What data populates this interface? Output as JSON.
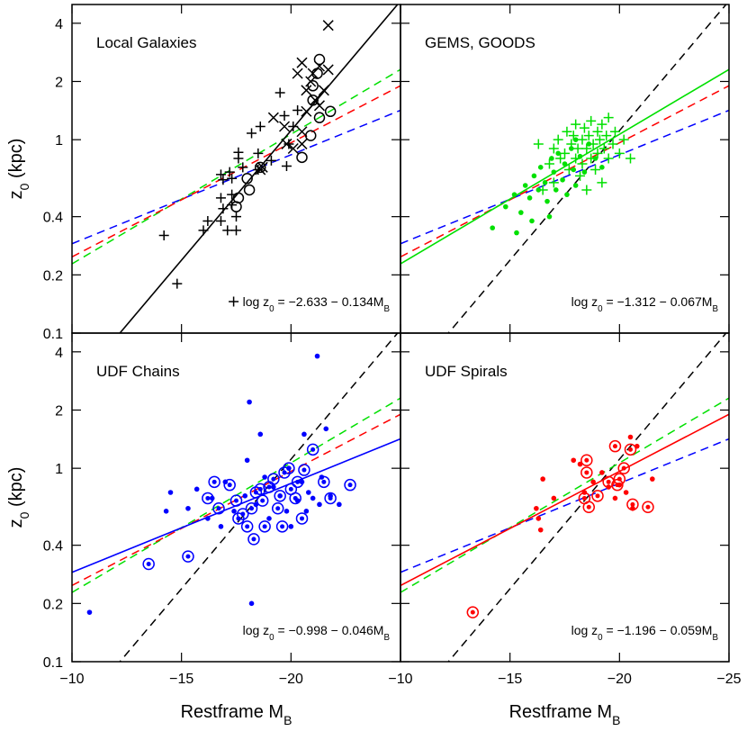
{
  "chart_data": [
    {
      "type": "scatter",
      "title": "Local Galaxies",
      "color": "#000000",
      "xlim": [
        -10,
        -25
      ],
      "ylim": [
        0.1,
        5
      ],
      "ylog": true,
      "xticks": [
        -10,
        -15,
        -20,
        -25
      ],
      "yticks": [
        0.1,
        0.2,
        0.4,
        1,
        2,
        4
      ],
      "show_xtick_labels": false,
      "show_ytick_labels": true,
      "ylabel": [
        "z",
        "0",
        " (kpc)"
      ],
      "fit": {
        "intercept": -2.633,
        "slope": -0.134,
        "label": [
          "log z",
          "0",
          " = −2.633 − 0.134M",
          "B"
        ],
        "marker": "plus"
      },
      "series": [
        {
          "marker": "plus",
          "color": "#000000",
          "x": [
            -14.2,
            -14.8,
            -16.0,
            -16.2,
            -16.8,
            -16.9,
            -16.8,
            -17.3,
            -16.9,
            -16.8,
            -17.2,
            -17.5,
            -17.5,
            -17.3,
            -17.6,
            -17.8,
            -17.6,
            -18.2,
            -18.6,
            -18.5,
            -19.1,
            -19.5,
            -19.7,
            -19.9,
            -19.8,
            -20.1,
            -20.3,
            -17.1,
            -17.3,
            -18.5
          ],
          "y": [
            0.32,
            0.18,
            0.34,
            0.38,
            0.38,
            0.44,
            0.5,
            0.52,
            0.62,
            0.66,
            0.68,
            0.4,
            0.34,
            0.46,
            0.8,
            0.72,
            0.86,
            1.08,
            1.17,
            0.85,
            0.78,
            1.75,
            1.33,
            0.95,
            0.73,
            1.17,
            1.42,
            0.34,
            0.63,
            0.7
          ]
        },
        {
          "marker": "cross",
          "color": "#000000",
          "x": [
            -21.7,
            -20.3,
            -20.5,
            -21.0,
            -21.3,
            -20.7,
            -21.1,
            -21.5,
            -20.7,
            -21.3,
            -19.7,
            -19.8,
            -20.1,
            -20.5,
            -20.5,
            -18.6,
            -18.7,
            -19.2,
            -20.9,
            -21.7
          ],
          "y": [
            3.9,
            2.2,
            2.5,
            2.2,
            2.4,
            1.8,
            1.6,
            1.8,
            1.4,
            1.5,
            1.17,
            0.95,
            0.9,
            0.95,
            1.1,
            0.7,
            0.72,
            1.3,
            2.0,
            2.3
          ]
        },
        {
          "marker": "circle",
          "color": "#000000",
          "x": [
            -21.3,
            -21.0,
            -21.2,
            -21.0,
            -21.3,
            -21.8,
            -20.9,
            -20.5,
            -18.0,
            -18.1,
            -17.6,
            -17.5,
            -18.6
          ],
          "y": [
            2.6,
            1.9,
            2.2,
            1.6,
            1.3,
            1.4,
            1.05,
            0.81,
            0.63,
            0.55,
            0.5,
            0.45,
            0.72
          ]
        }
      ]
    },
    {
      "type": "scatter",
      "title": "GEMS, GOODS",
      "color": "#00e000",
      "xlim": [
        -10,
        -25
      ],
      "ylim": [
        0.1,
        5
      ],
      "ylog": true,
      "xticks": [
        -10,
        -15,
        -20,
        -25
      ],
      "yticks": [
        0.1,
        0.2,
        0.4,
        1,
        2,
        4
      ],
      "show_xtick_labels": false,
      "show_ytick_labels": false,
      "fit": {
        "intercept": -1.312,
        "slope": -0.067,
        "label": [
          "log z",
          "0",
          " = −1.312 − 0.067M",
          "B"
        ]
      },
      "series": [
        {
          "marker": "plus",
          "color": "#00e000",
          "x": [
            -16.3,
            -16.8,
            -17.0,
            -17.2,
            -17.3,
            -17.5,
            -17.6,
            -17.7,
            -17.8,
            -17.9,
            -18.0,
            -18.0,
            -18.1,
            -18.2,
            -18.3,
            -18.3,
            -18.4,
            -18.5,
            -18.5,
            -18.6,
            -18.7,
            -18.7,
            -18.8,
            -18.9,
            -19.0,
            -19.0,
            -19.1,
            -19.2,
            -19.2,
            -19.3,
            -19.4,
            -19.5,
            -19.5,
            -19.7,
            -19.8,
            -20.0,
            -20.2,
            -20.5,
            -17.0,
            -16.5
          ],
          "y": [
            0.95,
            0.75,
            0.9,
            1.0,
            0.8,
            0.85,
            1.1,
            0.7,
            0.95,
            1.05,
            0.8,
            1.2,
            0.9,
            0.65,
            1.0,
            0.75,
            1.15,
            0.9,
            0.55,
            1.05,
            0.8,
            1.25,
            0.95,
            0.7,
            1.1,
            0.85,
            1.0,
            0.6,
            1.2,
            0.9,
            1.05,
            0.8,
            1.3,
            0.95,
            1.1,
            0.85,
            1.0,
            0.8,
            0.6,
            0.55
          ]
        },
        {
          "marker": "dot",
          "color": "#00e000",
          "x": [
            -14.2,
            -14.8,
            -15.2,
            -15.5,
            -15.7,
            -15.9,
            -16.0,
            -16.1,
            -16.3,
            -16.4,
            -16.6,
            -16.7,
            -16.9,
            -17.0,
            -17.1,
            -17.2,
            -17.4,
            -17.5,
            -17.6,
            -17.8,
            -17.9,
            -18.0,
            -18.2,
            -18.4,
            -18.6,
            -18.9,
            -19.2,
            -16.8,
            -15.3,
            -18.0
          ],
          "y": [
            0.35,
            0.45,
            0.52,
            0.42,
            0.58,
            0.5,
            0.38,
            0.65,
            0.55,
            0.72,
            0.6,
            0.48,
            0.8,
            0.68,
            0.55,
            0.85,
            0.62,
            0.75,
            0.52,
            0.9,
            0.7,
            0.58,
            0.82,
            0.68,
            0.95,
            0.8,
            0.72,
            0.4,
            0.33,
            1.0
          ]
        }
      ]
    },
    {
      "type": "scatter",
      "title": "UDF Chains",
      "color": "#0000ff",
      "xlim": [
        -10,
        -25
      ],
      "ylim": [
        0.1,
        5
      ],
      "ylog": true,
      "xticks": [
        {
          "value": -10,
          "label": "−10"
        },
        {
          "value": -15,
          "label": "−15"
        },
        {
          "value": -20,
          "label": "−20"
        }
      ],
      "yticks": [
        0.1,
        0.2,
        0.4,
        1,
        2,
        4
      ],
      "show_xtick_labels": true,
      "show_ytick_labels": true,
      "ylabel": [
        "z",
        "0",
        " (kpc)"
      ],
      "xlabel": [
        "Restframe M",
        "B"
      ],
      "fit": {
        "intercept": -0.998,
        "slope": -0.046,
        "label": [
          "log z",
          "0",
          " = −0.998 − 0.046M",
          "B"
        ]
      },
      "series": [
        {
          "marker": "dot",
          "color": "#0000ff",
          "x": [
            -10.8,
            -14.3,
            -14.5,
            -15.3,
            -15.7,
            -16.4,
            -16.8,
            -17.0,
            -17.4,
            -17.9,
            -18.1,
            -18.2,
            -18.4,
            -18.6,
            -18.8,
            -19.0,
            -19.2,
            -19.5,
            -19.8,
            -19.9,
            -20.0,
            -20.3,
            -20.5,
            -20.6,
            -20.7,
            -20.8,
            -21.0,
            -21.2,
            -21.3,
            -21.4,
            -21.6,
            -21.8,
            -22.2,
            -16.2,
            -18.0
          ],
          "y": [
            0.18,
            0.6,
            0.75,
            0.62,
            0.78,
            0.7,
            0.5,
            0.85,
            0.6,
            0.72,
            2.2,
            0.2,
            0.65,
            1.5,
            0.9,
            0.55,
            0.8,
            0.72,
            0.6,
            1.0,
            0.5,
            0.68,
            0.85,
            1.5,
            0.6,
            0.75,
            0.7,
            3.8,
            0.65,
            0.9,
            1.6,
            0.72,
            0.65,
            0.55,
            1.1
          ]
        },
        {
          "marker": "circled-dot",
          "color": "#0000ff",
          "x": [
            -13.5,
            -15.3,
            -16.2,
            -16.5,
            -16.7,
            -17.2,
            -17.5,
            -17.6,
            -17.8,
            -18.0,
            -18.2,
            -18.3,
            -18.4,
            -18.6,
            -18.7,
            -18.8,
            -19.0,
            -19.2,
            -19.4,
            -19.5,
            -19.6,
            -19.7,
            -19.9,
            -20.0,
            -20.2,
            -20.3,
            -20.5,
            -20.6,
            -21.0,
            -21.5,
            -21.8,
            -22.7
          ],
          "y": [
            0.32,
            0.35,
            0.7,
            0.85,
            0.62,
            0.82,
            0.68,
            0.55,
            0.58,
            0.5,
            0.62,
            0.43,
            0.75,
            0.78,
            0.68,
            0.5,
            0.8,
            0.88,
            0.62,
            0.72,
            0.5,
            0.95,
            1.0,
            0.78,
            0.7,
            0.85,
            0.55,
            0.98,
            1.25,
            0.85,
            0.7,
            0.82
          ]
        }
      ]
    },
    {
      "type": "scatter",
      "title": "UDF Spirals",
      "color": "#ff0000",
      "xlim": [
        -10,
        -25
      ],
      "ylim": [
        0.1,
        5
      ],
      "ylog": true,
      "xticks": [
        {
          "value": -10,
          "label": "−10"
        },
        {
          "value": -15,
          "label": "−15"
        },
        {
          "value": -20,
          "label": "−20"
        },
        {
          "value": -25,
          "label": "−25"
        }
      ],
      "yticks": [
        0.1,
        0.2,
        0.4,
        1,
        2,
        4
      ],
      "show_xtick_labels": true,
      "show_ytick_labels": false,
      "xlabel": [
        "Restframe M",
        "B"
      ],
      "fit": {
        "intercept": -1.196,
        "slope": -0.059,
        "label": [
          "log z",
          "0",
          " = −1.196 − 0.059M",
          "B"
        ]
      },
      "series": [
        {
          "marker": "dot",
          "color": "#ff0000",
          "x": [
            -16.3,
            -16.4,
            -16.2,
            -16.5,
            -17.0,
            -17.9,
            -18.2,
            -18.4,
            -18.8,
            -19.2,
            -19.5,
            -19.8,
            -20.0,
            -20.3,
            -20.5,
            -20.8,
            -21.5,
            -20.6
          ],
          "y": [
            0.55,
            0.48,
            0.62,
            0.88,
            0.7,
            1.1,
            1.05,
            0.75,
            0.85,
            0.95,
            0.8,
            0.7,
            0.82,
            0.75,
            1.45,
            1.3,
            0.88,
            0.62
          ]
        },
        {
          "marker": "circled-dot",
          "color": "#ff0000",
          "x": [
            -13.3,
            -18.4,
            -18.5,
            -18.5,
            -18.6,
            -19.0,
            -19.5,
            -19.8,
            -19.9,
            -20.0,
            -20.5,
            -20.6,
            -21.3,
            -20.2
          ],
          "y": [
            0.18,
            0.7,
            0.95,
            1.1,
            0.63,
            0.72,
            0.85,
            1.3,
            0.82,
            0.88,
            1.25,
            0.65,
            0.63,
            1.0
          ]
        }
      ]
    }
  ]
}
